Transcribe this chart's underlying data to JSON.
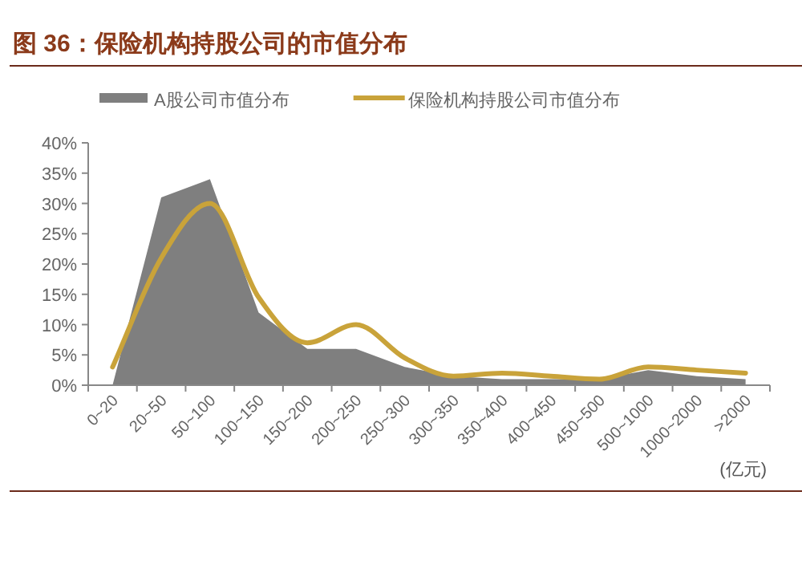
{
  "chart_data": {
    "type": "line",
    "title": "图 36：保险机构持股公司的市值分布",
    "xlabel": "(亿元)",
    "categories": [
      "0~20",
      "20~50",
      "50~100",
      "100~150",
      "150~200",
      "200~250",
      "250~300",
      "300~350",
      "350~400",
      "400~450",
      "450~500",
      "500~1000",
      "1000~2000",
      ">2000"
    ],
    "series": [
      {
        "name": "A股公司市值分布",
        "type": "area",
        "color": "#7f7f7f",
        "values": [
          0,
          31,
          34,
          12,
          6,
          6,
          3,
          1.5,
          1,
          1,
          1,
          2.5,
          1.5,
          1
        ]
      },
      {
        "name": "保险机构持股公司市值分布",
        "type": "line",
        "color": "#c9a33a",
        "values": [
          3,
          21,
          30,
          14.5,
          7,
          10,
          4.5,
          1.5,
          2,
          1.5,
          1,
          3,
          2.5,
          2
        ]
      }
    ],
    "ylim": [
      0,
      40
    ],
    "yticks": [
      {
        "value": 0,
        "label": "0%"
      },
      {
        "value": 5,
        "label": "5%"
      },
      {
        "value": 10,
        "label": "10%"
      },
      {
        "value": 15,
        "label": "15%"
      },
      {
        "value": 20,
        "label": "20%"
      },
      {
        "value": 25,
        "label": "25%"
      },
      {
        "value": 30,
        "label": "30%"
      },
      {
        "value": 35,
        "label": "35%"
      },
      {
        "value": 40,
        "label": "40%"
      }
    ],
    "legend": "top",
    "grid": false
  }
}
